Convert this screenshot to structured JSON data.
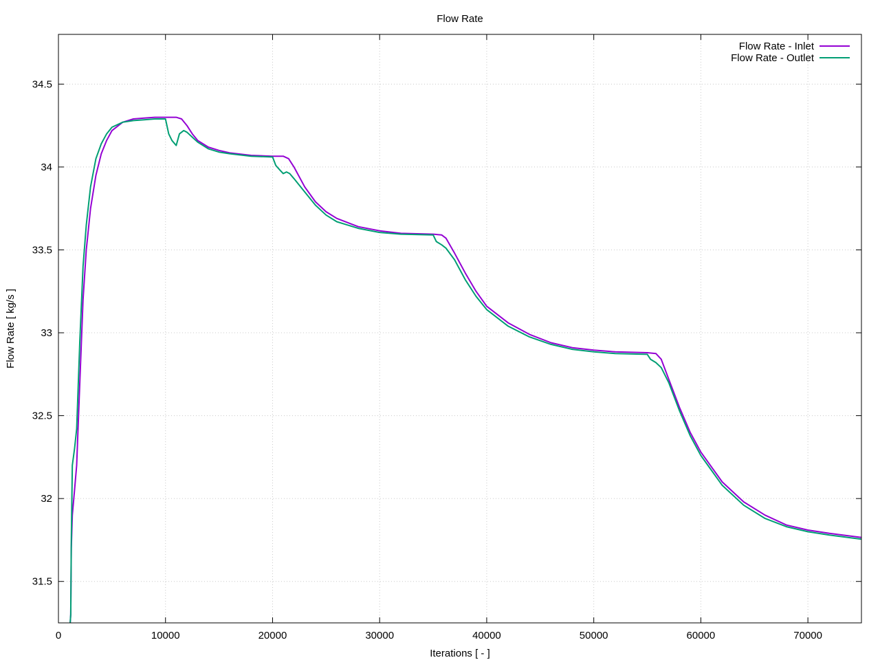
{
  "chart_data": {
    "type": "line",
    "title": "Flow Rate",
    "xlabel": "Iterations [ - ]",
    "ylabel": "Flow Rate [ kg/s ]",
    "xlim": [
      0,
      75000
    ],
    "ylim": [
      31.25,
      34.8
    ],
    "xticks": [
      0,
      10000,
      20000,
      30000,
      40000,
      50000,
      60000,
      70000
    ],
    "yticks": [
      31.5,
      32,
      32.5,
      33,
      33.5,
      34,
      34.5
    ],
    "grid": true,
    "legend_position": "top-right",
    "series": [
      {
        "name": "Flow Rate - Inlet",
        "color": "#9400d3",
        "points": [
          [
            1100,
            31.25
          ],
          [
            1150,
            31.3
          ],
          [
            1200,
            31.7
          ],
          [
            1300,
            31.9
          ],
          [
            1500,
            32.05
          ],
          [
            1700,
            32.2
          ],
          [
            2000,
            32.7
          ],
          [
            2300,
            33.2
          ],
          [
            2600,
            33.5
          ],
          [
            3000,
            33.75
          ],
          [
            3500,
            33.95
          ],
          [
            4000,
            34.08
          ],
          [
            4500,
            34.16
          ],
          [
            5000,
            34.22
          ],
          [
            6000,
            34.27
          ],
          [
            7000,
            34.29
          ],
          [
            8000,
            34.295
          ],
          [
            9000,
            34.3
          ],
          [
            10000,
            34.3
          ],
          [
            11000,
            34.3
          ],
          [
            11500,
            34.29
          ],
          [
            12000,
            34.25
          ],
          [
            12500,
            34.2
          ],
          [
            13000,
            34.16
          ],
          [
            14000,
            34.12
          ],
          [
            15000,
            34.1
          ],
          [
            16000,
            34.085
          ],
          [
            18000,
            34.07
          ],
          [
            20000,
            34.065
          ],
          [
            21000,
            34.065
          ],
          [
            21500,
            34.05
          ],
          [
            22000,
            34.0
          ],
          [
            23000,
            33.88
          ],
          [
            24000,
            33.79
          ],
          [
            25000,
            33.73
          ],
          [
            26000,
            33.69
          ],
          [
            28000,
            33.64
          ],
          [
            30000,
            33.615
          ],
          [
            32000,
            33.6
          ],
          [
            35000,
            33.595
          ],
          [
            35800,
            33.59
          ],
          [
            36200,
            33.57
          ],
          [
            37000,
            33.48
          ],
          [
            38000,
            33.36
          ],
          [
            39000,
            33.25
          ],
          [
            40000,
            33.16
          ],
          [
            42000,
            33.06
          ],
          [
            44000,
            32.99
          ],
          [
            46000,
            32.94
          ],
          [
            48000,
            32.91
          ],
          [
            50000,
            32.895
          ],
          [
            52000,
            32.885
          ],
          [
            55000,
            32.88
          ],
          [
            55800,
            32.875
          ],
          [
            56300,
            32.84
          ],
          [
            57000,
            32.72
          ],
          [
            58000,
            32.55
          ],
          [
            59000,
            32.4
          ],
          [
            60000,
            32.28
          ],
          [
            62000,
            32.1
          ],
          [
            64000,
            31.98
          ],
          [
            66000,
            31.9
          ],
          [
            68000,
            31.84
          ],
          [
            70000,
            31.81
          ],
          [
            72000,
            31.79
          ],
          [
            75000,
            31.765
          ]
        ]
      },
      {
        "name": "Flow Rate - Outlet",
        "color": "#009e73",
        "points": [
          [
            1100,
            31.25
          ],
          [
            1150,
            31.3
          ],
          [
            1200,
            31.74
          ],
          [
            1300,
            32.2
          ],
          [
            1500,
            32.3
          ],
          [
            1700,
            32.42
          ],
          [
            2000,
            32.95
          ],
          [
            2300,
            33.4
          ],
          [
            2600,
            33.65
          ],
          [
            3000,
            33.88
          ],
          [
            3500,
            34.05
          ],
          [
            4000,
            34.14
          ],
          [
            4500,
            34.2
          ],
          [
            5000,
            34.24
          ],
          [
            6000,
            34.27
          ],
          [
            7000,
            34.28
          ],
          [
            8000,
            34.285
          ],
          [
            9000,
            34.29
          ],
          [
            10000,
            34.29
          ],
          [
            10300,
            34.2
          ],
          [
            10600,
            34.16
          ],
          [
            11000,
            34.13
          ],
          [
            11300,
            34.2
          ],
          [
            11700,
            34.22
          ],
          [
            12000,
            34.21
          ],
          [
            12500,
            34.18
          ],
          [
            13000,
            34.15
          ],
          [
            14000,
            34.11
          ],
          [
            15000,
            34.09
          ],
          [
            16000,
            34.08
          ],
          [
            18000,
            34.065
          ],
          [
            20000,
            34.06
          ],
          [
            20300,
            34.01
          ],
          [
            20700,
            33.98
          ],
          [
            21000,
            33.96
          ],
          [
            21300,
            33.97
          ],
          [
            21600,
            33.96
          ],
          [
            22000,
            33.93
          ],
          [
            23000,
            33.85
          ],
          [
            24000,
            33.77
          ],
          [
            25000,
            33.71
          ],
          [
            26000,
            33.67
          ],
          [
            28000,
            33.63
          ],
          [
            30000,
            33.605
          ],
          [
            32000,
            33.595
          ],
          [
            35000,
            33.59
          ],
          [
            35300,
            33.55
          ],
          [
            35800,
            33.53
          ],
          [
            36200,
            33.51
          ],
          [
            37000,
            33.44
          ],
          [
            38000,
            33.32
          ],
          [
            39000,
            33.22
          ],
          [
            40000,
            33.14
          ],
          [
            42000,
            33.04
          ],
          [
            44000,
            32.975
          ],
          [
            46000,
            32.93
          ],
          [
            48000,
            32.9
          ],
          [
            50000,
            32.885
          ],
          [
            52000,
            32.875
          ],
          [
            55000,
            32.87
          ],
          [
            55300,
            32.84
          ],
          [
            55800,
            32.82
          ],
          [
            56300,
            32.79
          ],
          [
            57000,
            32.7
          ],
          [
            58000,
            32.53
          ],
          [
            59000,
            32.38
          ],
          [
            60000,
            32.26
          ],
          [
            62000,
            32.08
          ],
          [
            64000,
            31.96
          ],
          [
            66000,
            31.88
          ],
          [
            68000,
            31.83
          ],
          [
            70000,
            31.8
          ],
          [
            72000,
            31.78
          ],
          [
            75000,
            31.755
          ]
        ]
      }
    ]
  }
}
